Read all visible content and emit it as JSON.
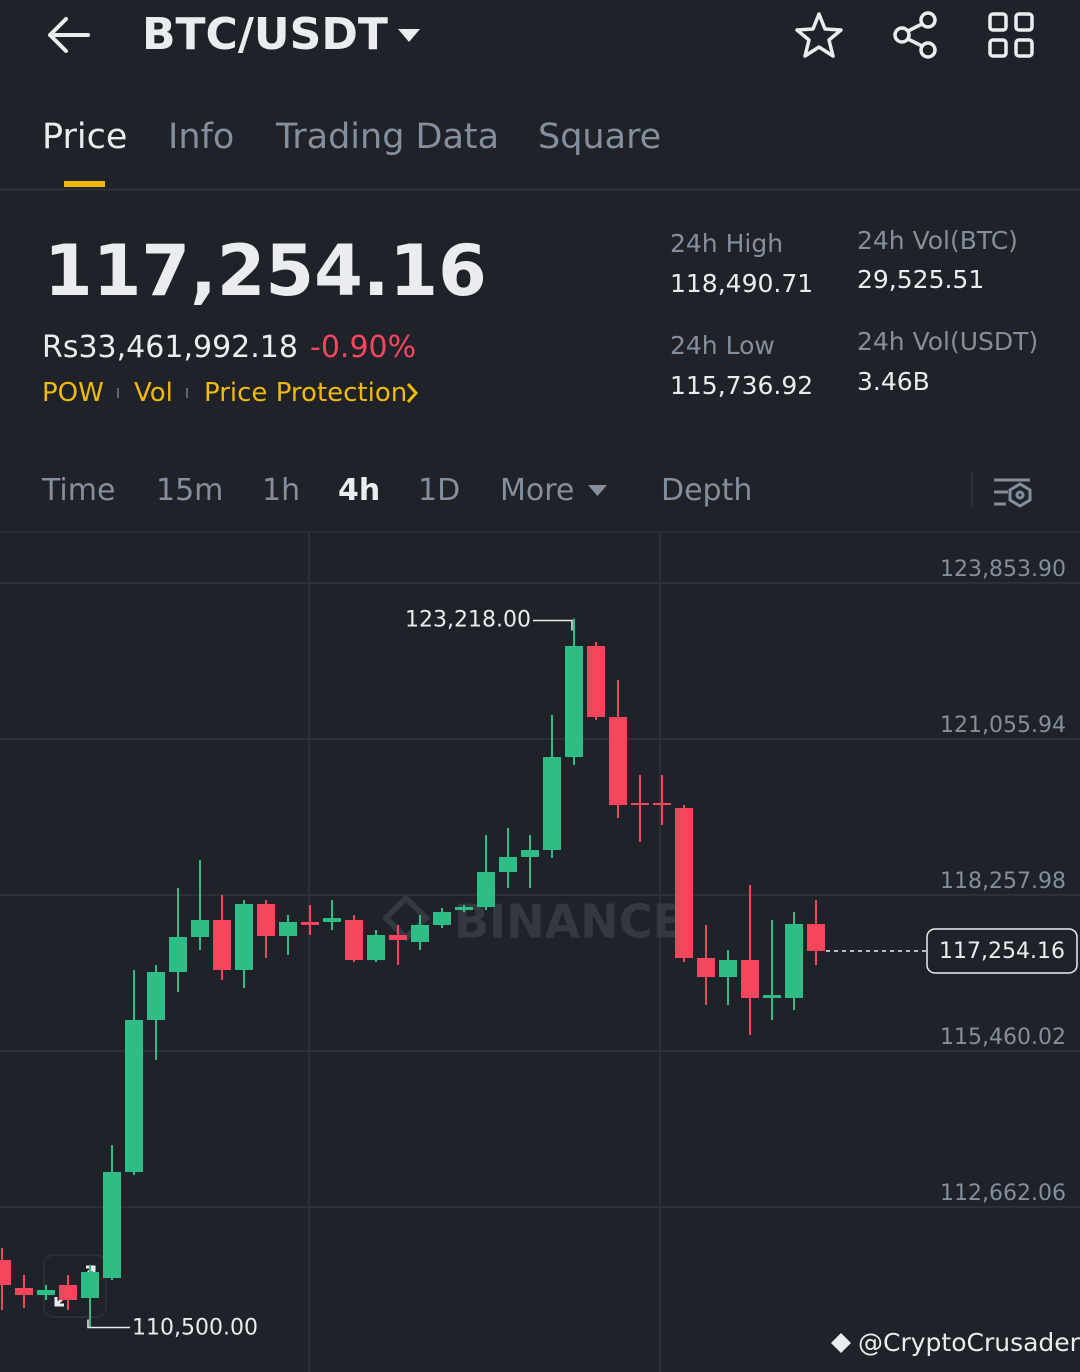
{
  "header": {
    "title": "BTC/USDT"
  },
  "tabs": [
    "Price",
    "Info",
    "Trading Data",
    "Square"
  ],
  "ticker": {
    "price": "117,254.16",
    "fiat_price": "Rs33,461,992.18",
    "change": "-0.90%",
    "tags": [
      "POW",
      "Vol",
      "Price Protection"
    ],
    "stats": [
      {
        "label": "24h High",
        "value": "118,490.71"
      },
      {
        "label": "24h Low",
        "value": "115,736.92"
      },
      {
        "label": "24h Vol(BTC)",
        "value": "29,525.51"
      },
      {
        "label": "24h Vol(USDT)",
        "value": "3.46B"
      }
    ]
  },
  "intervals": [
    "Time",
    "15m",
    "1h",
    "4h",
    "1D",
    "More",
    "Depth"
  ],
  "chart_data": {
    "type": "candlestick",
    "up_color": "#2ebd85",
    "down_color": "#f6465d",
    "open": [
      111711,
      111209,
      111083,
      111263,
      111030,
      111388,
      113290,
      116016,
      116877,
      117505,
      117810,
      116913,
      118097,
      117523,
      117774,
      117774,
      117810,
      117092,
      117541,
      117415,
      117720,
      117989,
      118043,
      118670,
      118940,
      119065,
      120733,
      122724,
      121451,
      119908,
      119908,
      119818,
      117128,
      116787,
      117092,
      116411,
      116411,
      117738
    ],
    "high": [
      111926,
      111442,
      111263,
      111442,
      111622,
      113774,
      116913,
      117002,
      118384,
      118886,
      118258,
      118168,
      118168,
      117899,
      118079,
      118168,
      117899,
      117630,
      117720,
      117899,
      118025,
      118079,
      119334,
      119460,
      119334,
      121486,
      123218,
      122796,
      122114,
      120410,
      120410,
      119872,
      117720,
      117271,
      118437,
      117810,
      117953,
      118168
    ],
    "low": [
      110814,
      110850,
      110994,
      110814,
      110500,
      111352,
      113236,
      115299,
      116518,
      117271,
      116733,
      116590,
      117128,
      117182,
      117541,
      117630,
      117056,
      117056,
      117002,
      117271,
      117666,
      117953,
      117989,
      118384,
      118384,
      118922,
      120590,
      121397,
      119639,
      119209,
      119513,
      117056,
      116285,
      116285,
      115747,
      116016,
      116195,
      117002
    ],
    "close": [
      111263,
      111083,
      111173,
      110994,
      111496,
      113290,
      116016,
      116877,
      117505,
      117810,
      116913,
      118097,
      117523,
      117774,
      117720,
      117845,
      117092,
      117541,
      117451,
      117720,
      117953,
      118043,
      118670,
      118940,
      119065,
      120733,
      122724,
      121451,
      119872,
      119872,
      119872,
      117128,
      116787,
      117092,
      116411,
      116464,
      117738,
      117254.16
    ],
    "ylim": [
      109828,
      124751
    ],
    "yticks": [
      {
        "value": 123853.9,
        "label": "123,853.90"
      },
      {
        "value": 121055.94,
        "label": "121,055.94"
      },
      {
        "value": 118257.98,
        "label": "118,257.98"
      },
      {
        "value": 115460.02,
        "label": "115,460.02"
      },
      {
        "value": 112662.06,
        "label": "112,662.06"
      }
    ],
    "grid": true,
    "annotations": [
      {
        "value": 123218,
        "label": "123,218.00"
      },
      {
        "value": 110500,
        "label": "110,500.00"
      }
    ],
    "last_price": {
      "value": 117254.16,
      "label": "117,254.16"
    },
    "watermark": "BINANCE",
    "credit": "@CryptoCrusader"
  }
}
